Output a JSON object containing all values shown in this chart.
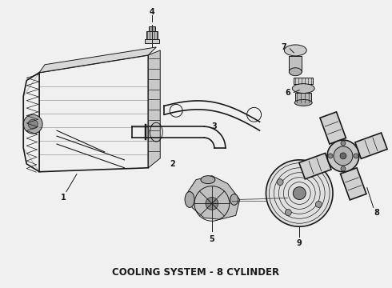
{
  "title": "COOLING SYSTEM - 8 CYLINDER",
  "title_fontsize": 8.5,
  "title_fontweight": "bold",
  "bg_color": "#f0f0f0",
  "line_color": "#1a1a1a",
  "label_color": "#1a1a1a",
  "figsize": [
    4.9,
    3.6
  ],
  "dpi": 100
}
